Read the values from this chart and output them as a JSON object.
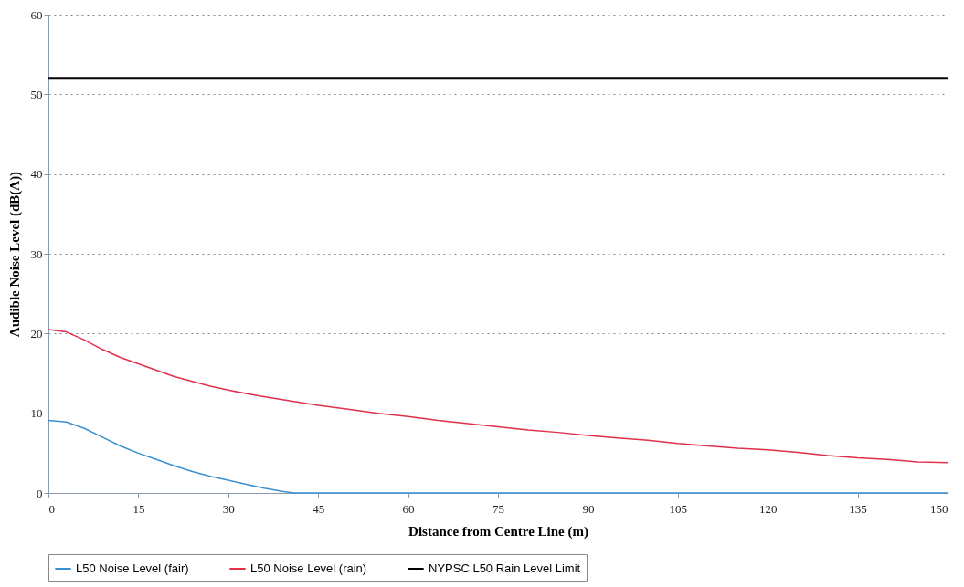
{
  "chart_data": {
    "type": "line",
    "xlabel": "Distance from Centre Line (m)",
    "ylabel": "Audible Noise Level (dB(A))",
    "xlim": [
      0,
      150
    ],
    "ylim": [
      0,
      60
    ],
    "xticks": [
      0,
      15,
      30,
      45,
      60,
      75,
      90,
      105,
      120,
      135,
      150
    ],
    "yticks": [
      0,
      10,
      20,
      30,
      40,
      50,
      60
    ],
    "grid": "y",
    "legend": "bottom",
    "marker": "none",
    "line_style": "solid",
    "series": [
      {
        "name": "L50 Noise Level (fair)",
        "color": "#3a8fd0",
        "x": [
          0,
          3,
          6,
          9,
          12,
          15,
          18,
          21,
          24,
          27,
          30,
          33,
          36,
          39,
          41,
          60,
          90,
          120,
          150
        ],
        "values": [
          9.1,
          8.9,
          8.1,
          7.0,
          5.9,
          5.0,
          4.2,
          3.4,
          2.7,
          2.1,
          1.6,
          1.1,
          0.6,
          0.2,
          0,
          0,
          0,
          0,
          0
        ]
      },
      {
        "name": "L50 Noise Level (rain)",
        "color": "#e0304a",
        "x": [
          0,
          3,
          6,
          9,
          12,
          15,
          18,
          21,
          24,
          27,
          30,
          35,
          40,
          45,
          50,
          55,
          60,
          65,
          70,
          75,
          80,
          85,
          90,
          95,
          100,
          105,
          110,
          115,
          120,
          125,
          130,
          135,
          140,
          145,
          150
        ],
        "values": [
          20.5,
          20.2,
          19.2,
          18.0,
          17.0,
          16.2,
          15.4,
          14.6,
          14.0,
          13.4,
          12.9,
          12.2,
          11.6,
          11.0,
          10.5,
          10.0,
          9.6,
          9.1,
          8.7,
          8.3,
          7.9,
          7.6,
          7.2,
          6.9,
          6.6,
          6.2,
          5.9,
          5.6,
          5.4,
          5.1,
          4.7,
          4.4,
          4.2,
          3.9,
          3.8
        ]
      },
      {
        "name": "NYPSC L50 Rain Level Limit",
        "color": "#000000",
        "x": [
          0,
          150
        ],
        "values": [
          52,
          52
        ]
      }
    ]
  }
}
